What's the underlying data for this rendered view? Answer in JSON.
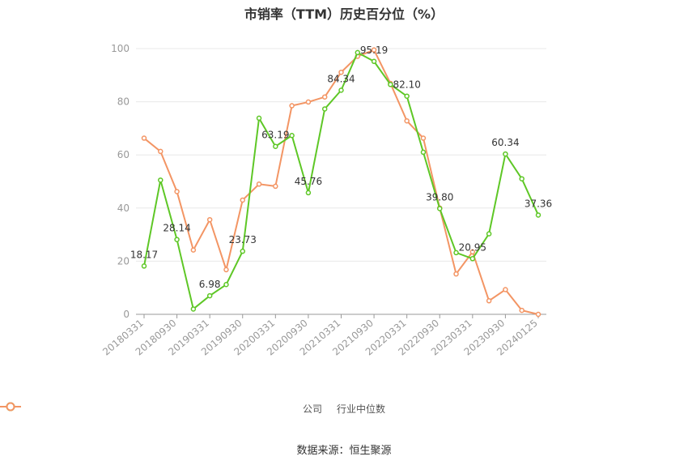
{
  "title": "市销率（TTM）历史百分位（%）",
  "source": "数据来源：恒生聚源",
  "colors": {
    "company": "#5ec726",
    "industry": "#f39564",
    "grid": "#e8e8e8",
    "axis": "#999999"
  },
  "chart_data": {
    "type": "line",
    "ylim": [
      0,
      100
    ],
    "yticks": [
      0,
      20,
      40,
      60,
      80,
      100
    ],
    "x": [
      "20180331",
      "20180630",
      "20180930",
      "20181231",
      "20190331",
      "20190630",
      "20190930",
      "20191231",
      "20200331",
      "20200630",
      "20200930",
      "20201231",
      "20210331",
      "20210630",
      "20210930",
      "20211231",
      "20220331",
      "20220630",
      "20220930",
      "20221231",
      "20230331",
      "20230630",
      "20230930",
      "20231231",
      "20240125"
    ],
    "xtick_labels": [
      "20180331",
      "20180930",
      "20190331",
      "20190930",
      "20200331",
      "20200930",
      "20210331",
      "20210930",
      "20220331",
      "20220930",
      "20230331",
      "20230930",
      "20240125"
    ],
    "series": [
      {
        "name": "公司",
        "values": [
          18.17,
          50.5,
          28.14,
          2.0,
          6.98,
          11.2,
          23.73,
          73.8,
          63.19,
          67.3,
          45.76,
          77.3,
          84.34,
          98.5,
          95.19,
          86.5,
          82.1,
          61.0,
          39.8,
          23.2,
          20.95,
          30.3,
          60.34,
          51.0,
          37.36
        ],
        "labels": {
          "0": "18.17",
          "2": "28.14",
          "4": "6.98",
          "6": "23.73",
          "8": "63.19",
          "10": "45.76",
          "12": "84.34",
          "14": "95.19",
          "16": "82.10",
          "18": "39.80",
          "20": "20.95",
          "22": "60.34",
          "24": "37.36"
        }
      },
      {
        "name": "行业中位数",
        "values": [
          66.3,
          61.3,
          46.2,
          24.2,
          35.6,
          16.8,
          43.0,
          49.0,
          48.2,
          78.5,
          79.9,
          81.8,
          91.1,
          97.1,
          99.5,
          86.9,
          72.8,
          66.3,
          40.0,
          15.2,
          23.5,
          5.1,
          9.3,
          1.5,
          0.0
        ]
      }
    ]
  }
}
